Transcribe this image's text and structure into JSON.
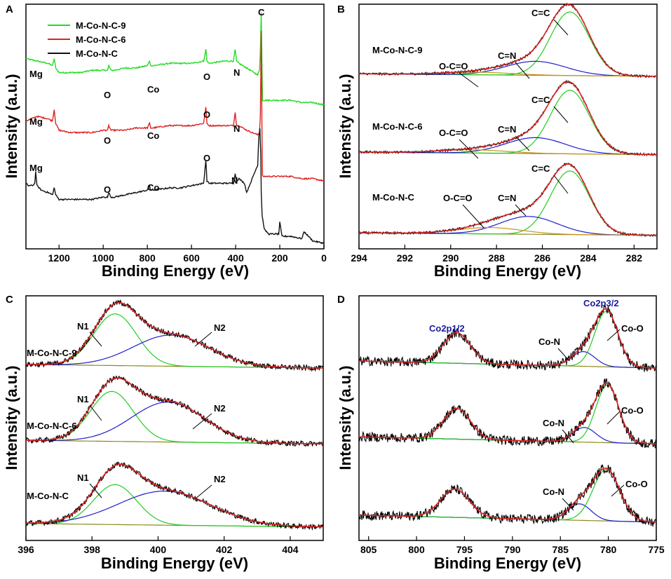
{
  "chart_data": [
    {
      "panel": "A",
      "type": "line",
      "xlabel": "Binding Energy (eV)",
      "ylabel": "Intensity (a.u.)",
      "xlim": [
        1350,
        0
      ],
      "xticks": [
        1200,
        1000,
        800,
        600,
        400,
        200,
        0
      ],
      "legend": [
        "M-Co-N-C-9",
        "M-Co-N-C-6",
        "M-Co-N-C"
      ],
      "legend_colors": [
        "#22dd22",
        "#dd2222",
        "#111111"
      ],
      "series": [
        {
          "name": "M-Co-N-C-9",
          "color": "#22dd22",
          "x": [
            1350,
            1300,
            1250,
            1230,
            1222,
            1215,
            1200,
            1150,
            1100,
            1050,
            1000,
            980,
            975,
            965,
            950,
            900,
            850,
            800,
            790,
            785,
            775,
            700,
            650,
            600,
            545,
            535,
            530,
            520,
            450,
            410,
            402,
            396,
            385,
            350,
            300,
            292,
            288,
            284,
            280,
            278,
            260,
            200,
            150,
            100,
            50,
            0
          ],
          "y": [
            0.8,
            0.79,
            0.78,
            0.77,
            0.8,
            0.76,
            0.74,
            0.74,
            0.74,
            0.75,
            0.75,
            0.75,
            0.77,
            0.75,
            0.75,
            0.76,
            0.76,
            0.77,
            0.79,
            0.77,
            0.77,
            0.78,
            0.78,
            0.78,
            0.79,
            0.84,
            0.79,
            0.78,
            0.79,
            0.79,
            0.84,
            0.79,
            0.78,
            0.76,
            0.73,
            0.75,
            0.84,
            1.0,
            0.73,
            0.62,
            0.62,
            0.62,
            0.62,
            0.61,
            0.61,
            0.6
          ]
        },
        {
          "name": "M-Co-N-C-6",
          "color": "#dd2222",
          "x": [
            1350,
            1300,
            1250,
            1230,
            1222,
            1215,
            1200,
            1150,
            1100,
            1050,
            1000,
            980,
            975,
            965,
            950,
            900,
            850,
            800,
            790,
            785,
            775,
            700,
            650,
            600,
            545,
            535,
            530,
            520,
            450,
            410,
            402,
            396,
            385,
            350,
            300,
            292,
            288,
            284,
            280,
            278,
            260,
            200,
            150,
            100,
            50,
            0
          ],
          "y": [
            0.53,
            0.55,
            0.54,
            0.53,
            0.58,
            0.52,
            0.49,
            0.48,
            0.48,
            0.48,
            0.49,
            0.49,
            0.51,
            0.49,
            0.49,
            0.49,
            0.5,
            0.5,
            0.52,
            0.5,
            0.5,
            0.51,
            0.51,
            0.51,
            0.52,
            0.59,
            0.52,
            0.51,
            0.51,
            0.51,
            0.57,
            0.51,
            0.51,
            0.49,
            0.47,
            0.48,
            0.55,
            0.92,
            0.4,
            0.29,
            0.29,
            0.29,
            0.29,
            0.28,
            0.28,
            0.27
          ]
        },
        {
          "name": "M-Co-N-C",
          "color": "#111111",
          "x": [
            1350,
            1340,
            1320,
            1310,
            1306,
            1300,
            1280,
            1250,
            1230,
            1222,
            1215,
            1200,
            1150,
            1100,
            1050,
            1000,
            980,
            975,
            965,
            950,
            900,
            850,
            800,
            790,
            785,
            775,
            700,
            650,
            600,
            545,
            535,
            530,
            520,
            450,
            410,
            402,
            396,
            385,
            360,
            350,
            300,
            295,
            290,
            286,
            284,
            280,
            270,
            260,
            250,
            220,
            205,
            200,
            190,
            150,
            100,
            90,
            50,
            0
          ],
          "y": [
            0.26,
            0.25,
            0.25,
            0.26,
            0.31,
            0.25,
            0.23,
            0.22,
            0.21,
            0.24,
            0.21,
            0.19,
            0.19,
            0.19,
            0.19,
            0.2,
            0.2,
            0.22,
            0.2,
            0.2,
            0.21,
            0.22,
            0.23,
            0.25,
            0.23,
            0.23,
            0.24,
            0.24,
            0.25,
            0.26,
            0.36,
            0.27,
            0.26,
            0.26,
            0.26,
            0.3,
            0.27,
            0.28,
            0.26,
            0.22,
            0.34,
            0.46,
            0.5,
            0.38,
            0.22,
            0.12,
            0.06,
            0.05,
            0.04,
            0.04,
            0.04,
            0.09,
            0.03,
            0.03,
            0.02,
            0.05,
            0.01,
            0.0
          ]
        }
      ],
      "annotations": [
        {
          "text": "Mg",
          "x": 1235,
          "y": 0.82
        },
        {
          "text": "Mg",
          "x": 1235,
          "y": 0.58
        },
        {
          "text": "Mg",
          "x": 1235,
          "y": 0.33
        },
        {
          "text": "O",
          "x": 985,
          "y": 0.77
        },
        {
          "text": "O",
          "x": 985,
          "y": 0.51
        },
        {
          "text": "O",
          "x": 985,
          "y": 0.24
        },
        {
          "text": "Co",
          "x": 810,
          "y": 0.79
        },
        {
          "text": "Co",
          "x": 810,
          "y": 0.52
        },
        {
          "text": "Co",
          "x": 810,
          "y": 0.25
        },
        {
          "text": "O",
          "x": 540,
          "y": 0.86
        },
        {
          "text": "O",
          "x": 540,
          "y": 0.61
        },
        {
          "text": "O",
          "x": 540,
          "y": 0.39
        },
        {
          "text": "N",
          "x": 400,
          "y": 0.86
        },
        {
          "text": "N",
          "x": 400,
          "y": 0.59
        },
        {
          "text": "N",
          "x": 400,
          "y": 0.31
        },
        {
          "text": "C",
          "x": 285,
          "y": 1.01
        }
      ]
    },
    {
      "panel": "B",
      "type": "line",
      "xlabel": "Binding Energy (eV)",
      "ylabel": "Intensity (a.u.)",
      "xlim": [
        294,
        281
      ],
      "xticks": [
        294,
        292,
        290,
        288,
        286,
        284,
        282
      ],
      "samples": [
        {
          "name": "M-Co-N-C-9",
          "offset": 0.7,
          "amp": 0.26,
          "peaks": [
            {
              "label": "C=C",
              "center": 284.8,
              "height": 1.0,
              "width": 0.85,
              "color": "#22cc22"
            },
            {
              "label": "C=N",
              "center": 286.3,
              "height": 0.22,
              "width": 1.3,
              "color": "#1e1ecc"
            },
            {
              "label": "O-C=O",
              "center": 288.8,
              "height": 0.04,
              "width": 1.5,
              "color": "#c8941e"
            }
          ]
        },
        {
          "name": "M-Co-N-C-6",
          "offset": 0.38,
          "amp": 0.26,
          "peaks": [
            {
              "label": "C=C",
              "center": 284.8,
              "height": 1.0,
              "width": 0.85,
              "color": "#22cc22"
            },
            {
              "label": "C=N",
              "center": 286.3,
              "height": 0.25,
              "width": 1.3,
              "color": "#1e1ecc"
            },
            {
              "label": "O-C=O",
              "center": 289.0,
              "height": 0.05,
              "width": 1.5,
              "color": "#c8941e"
            }
          ]
        },
        {
          "name": "M-Co-N-C",
          "offset": 0.05,
          "amp": 0.26,
          "peaks": [
            {
              "label": "C=C",
              "center": 284.8,
              "height": 1.0,
              "width": 0.85,
              "color": "#22cc22"
            },
            {
              "label": "C=N",
              "center": 286.6,
              "height": 0.28,
              "width": 1.25,
              "color": "#1e1ecc"
            },
            {
              "label": "O-C=O",
              "center": 288.3,
              "height": 0.1,
              "width": 1.4,
              "color": "#c8941e"
            }
          ]
        }
      ]
    },
    {
      "panel": "C",
      "type": "line",
      "xlabel": "Binding Energy (eV)",
      "ylabel": "Intensity (a.u.)",
      "xlim": [
        396,
        405
      ],
      "xticks": [
        396,
        398,
        400,
        402,
        404
      ],
      "samples": [
        {
          "name": "M-Co-N-C-9",
          "offset": 0.7,
          "amp": 0.24,
          "peaks": [
            {
              "label": "N1",
              "center": 398.7,
              "height": 0.88,
              "width": 0.65,
              "color": "#22cc22"
            },
            {
              "label": "N2",
              "center": 400.4,
              "height": 0.53,
              "width": 1.15,
              "color": "#1e1ecc"
            }
          ]
        },
        {
          "name": "M-Co-N-C-6",
          "offset": 0.39,
          "amp": 0.24,
          "peaks": [
            {
              "label": "N1",
              "center": 398.6,
              "height": 0.85,
              "width": 0.65,
              "color": "#22cc22"
            },
            {
              "label": "N2",
              "center": 400.3,
              "height": 0.68,
              "width": 1.1,
              "color": "#1e1ecc"
            }
          ]
        },
        {
          "name": "M-Co-N-C",
          "offset": 0.05,
          "amp": 0.24,
          "peaks": [
            {
              "label": "N1",
              "center": 398.7,
              "height": 0.68,
              "width": 0.65,
              "color": "#22cc22"
            },
            {
              "label": "N2",
              "center": 400.2,
              "height": 0.58,
              "width": 1.4,
              "color": "#1e1ecc"
            }
          ]
        }
      ]
    },
    {
      "panel": "D",
      "type": "line",
      "xlabel": "Binding Energy (eV)",
      "ylabel": "Intensity (a.u.)",
      "xlim": [
        806,
        775
      ],
      "xticks": [
        805,
        800,
        795,
        790,
        785,
        780,
        775
      ],
      "peak_labels": {
        "co2p12": "Co2p1/2",
        "co2p32": "Co2p3/2"
      },
      "samples": [
        {
          "name": "top",
          "offset": 0.7,
          "amp": 0.24,
          "peaks": [
            {
              "label": "Co2p1/2",
              "center": 795.8,
              "height": 0.52,
              "width": 1.4,
              "color": "#cc2222"
            },
            {
              "label": "Co-N",
              "center": 782.6,
              "height": 0.25,
              "width": 1.2,
              "color": "#1e1ecc"
            },
            {
              "label": "Co-O",
              "center": 780.2,
              "height": 0.95,
              "width": 1.2,
              "color": "#22cc22"
            }
          ]
        },
        {
          "name": "middle",
          "offset": 0.39,
          "amp": 0.24,
          "peaks": [
            {
              "label": "Co2p1/2",
              "center": 795.8,
              "height": 0.52,
              "width": 1.4,
              "color": "#cc2222"
            },
            {
              "label": "Co-N",
              "center": 782.5,
              "height": 0.25,
              "width": 1.2,
              "color": "#1e1ecc"
            },
            {
              "label": "Co-O",
              "center": 780.1,
              "height": 0.98,
              "width": 1.2,
              "color": "#22cc22"
            }
          ]
        },
        {
          "name": "bottom",
          "offset": 0.07,
          "amp": 0.24,
          "peaks": [
            {
              "label": "Co2p1/2",
              "center": 796.0,
              "height": 0.48,
              "width": 1.5,
              "color": "#cc2222"
            },
            {
              "label": "Co-N",
              "center": 783.0,
              "height": 0.28,
              "width": 1.2,
              "color": "#1e1ecc"
            },
            {
              "label": "Co-O",
              "center": 780.2,
              "height": 0.88,
              "width": 1.4,
              "color": "#22cc22"
            }
          ]
        }
      ]
    }
  ],
  "panel_letters": {
    "a": "A",
    "b": "B",
    "c": "C",
    "d": "D"
  },
  "text": {
    "mg": "Mg",
    "o": "O",
    "co": "Co",
    "n": "N",
    "c": "C",
    "c_eq_c": "C=C",
    "c_eq_n": "C=N",
    "ocO": "O-C=O",
    "n1": "N1",
    "n2": "N2",
    "con": "Co-N",
    "coo": "Co-O",
    "co2p12": "Co2p1/2",
    "co2p32": "Co2p3/2",
    "s9": "M-Co-N-C-9",
    "s6": "M-Co-N-C-6",
    "s0": "M-Co-N-C",
    "xlabel": "Binding Energy (eV)",
    "ylabel": "Intensity (a.u.)"
  }
}
